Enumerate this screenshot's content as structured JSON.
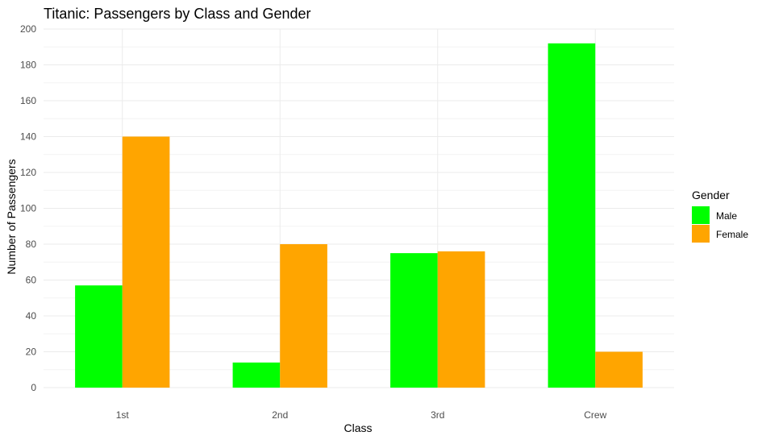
{
  "chart_data": {
    "type": "bar",
    "title": "Titanic: Passengers by Class and Gender",
    "xlabel": "Class",
    "ylabel": "Number of Passengers",
    "categories": [
      "1st",
      "2nd",
      "3rd",
      "Crew"
    ],
    "series": [
      {
        "name": "Male",
        "color": "#00ff00",
        "values": [
          57,
          14,
          75,
          192
        ]
      },
      {
        "name": "Female",
        "color": "#ffa500",
        "values": [
          140,
          80,
          76,
          20
        ]
      }
    ],
    "ylim": [
      0,
      200
    ],
    "yticks": [
      0,
      20,
      40,
      60,
      80,
      100,
      120,
      140,
      160,
      180,
      200
    ],
    "grid": true,
    "legend": {
      "title": "Gender",
      "position": "right"
    }
  }
}
